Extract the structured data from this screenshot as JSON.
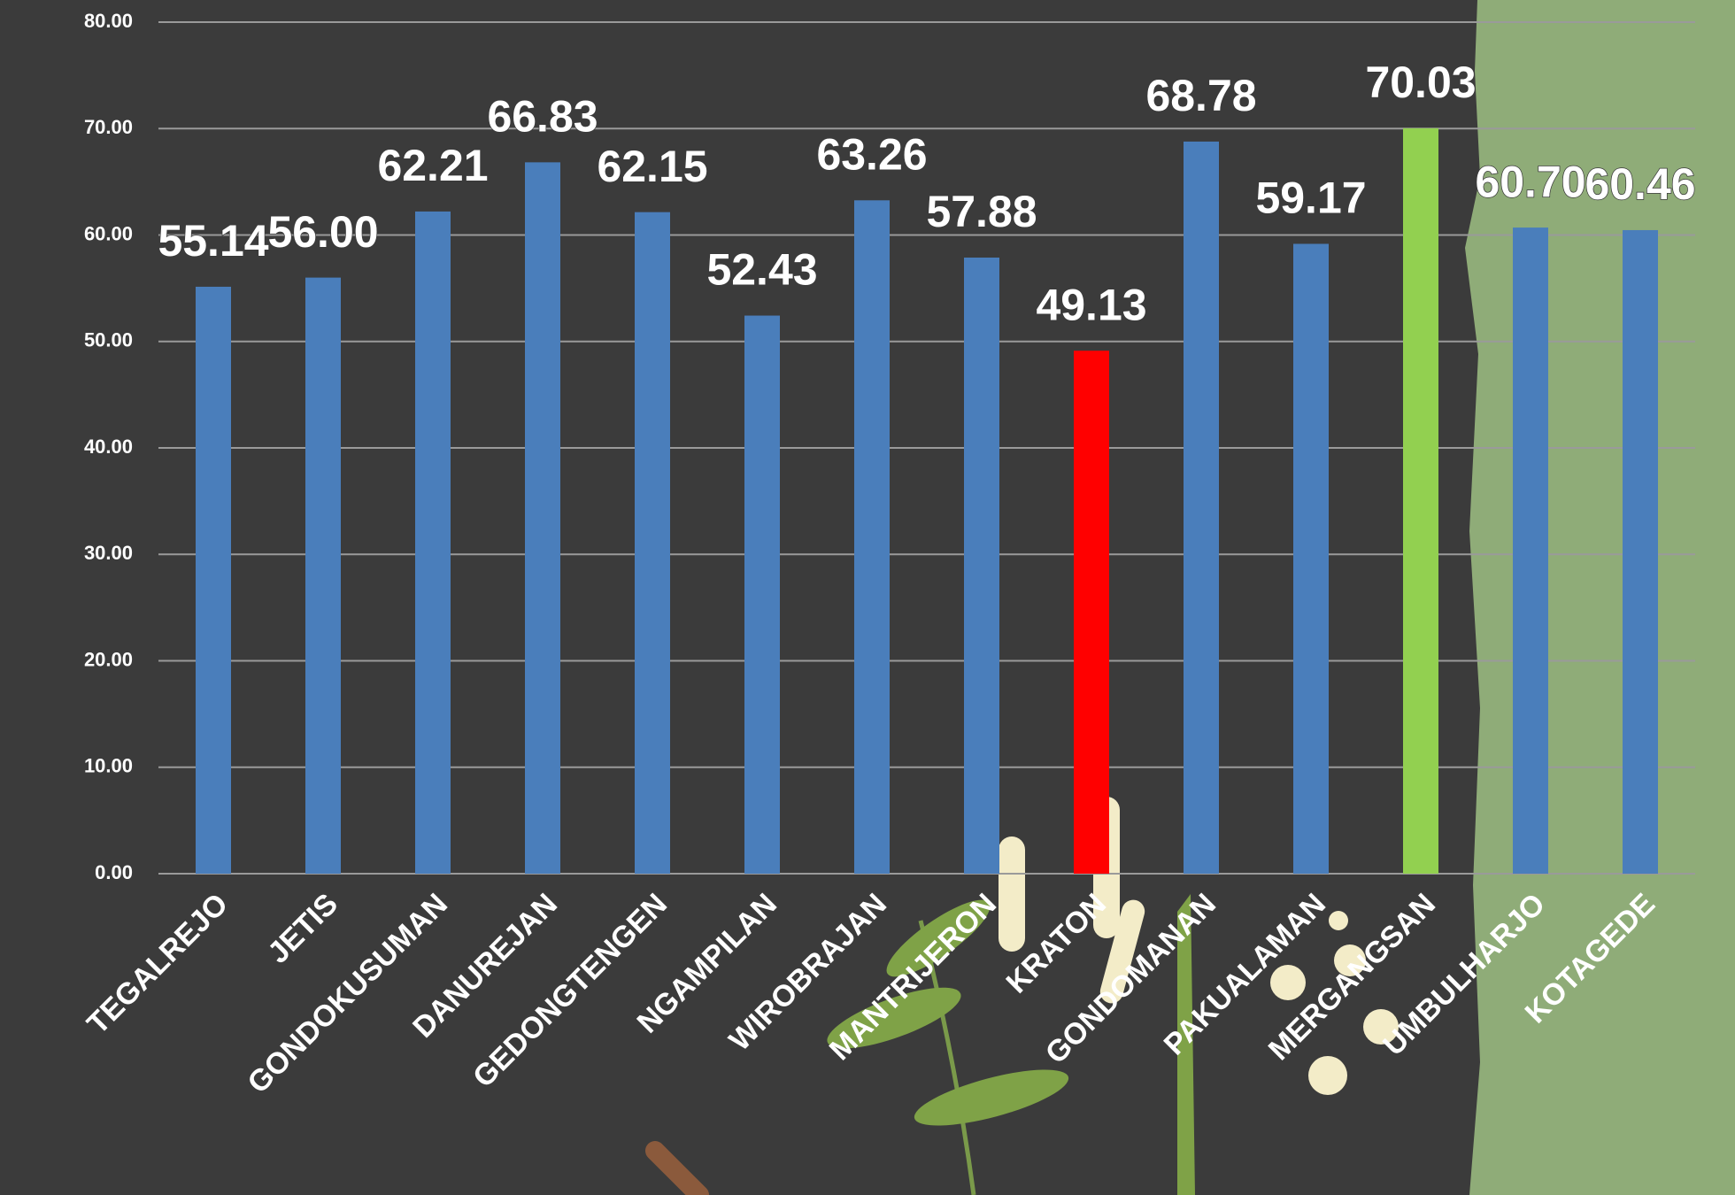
{
  "chart_data": {
    "type": "bar",
    "categories": [
      "TEGALREJO",
      "JETIS",
      "GONDOKUSUMAN",
      "DANUREJAN",
      "GEDONGTENGEN",
      "NGAMPILAN",
      "WIROBRAJAN",
      "MANTRIJERON",
      "KRATON",
      "GONDOMANAN",
      "PAKUALAMAN",
      "MERGANGSAN",
      "UMBULHARJO",
      "KOTAGEDE"
    ],
    "values": [
      55.14,
      56,
      62.21,
      66.83,
      62.15,
      52.43,
      63.26,
      57.88,
      49.13,
      68.78,
      59.17,
      70.03,
      60.7,
      60.46
    ],
    "value_labels": [
      "55.14",
      "56.00",
      "62.21",
      "66.83",
      "62.15",
      "52.43",
      "63.26",
      "57.88",
      "49.13",
      "68.78",
      "59.17",
      "70.03",
      "60.70",
      "60.46"
    ],
    "colors": [
      "#4a7ebb",
      "#4a7ebb",
      "#4a7ebb",
      "#4a7ebb",
      "#4a7ebb",
      "#4a7ebb",
      "#4a7ebb",
      "#4a7ebb",
      "#ff0000",
      "#4a7ebb",
      "#4a7ebb",
      "#92d050",
      "#4a7ebb",
      "#4a7ebb"
    ],
    "ylim": [
      0,
      80
    ],
    "yticks": [
      {
        "value": 0,
        "label": "0.00"
      },
      {
        "value": 10,
        "label": "10.00"
      },
      {
        "value": 20,
        "label": "20.00"
      },
      {
        "value": 30,
        "label": "30.00"
      },
      {
        "value": 40,
        "label": "40.00"
      },
      {
        "value": 50,
        "label": "50.00"
      },
      {
        "value": 60,
        "label": "60.00"
      },
      {
        "value": 70,
        "label": "70.00"
      },
      {
        "value": 80,
        "label": "80.00"
      }
    ],
    "grid": true
  }
}
